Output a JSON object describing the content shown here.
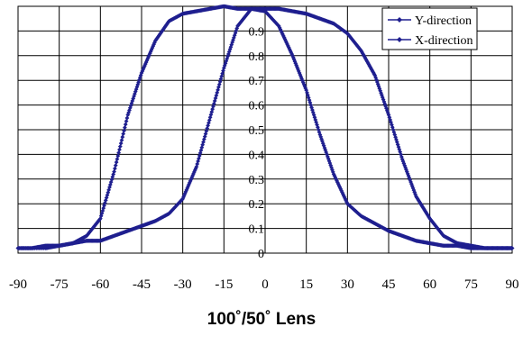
{
  "chart_data": {
    "type": "line",
    "title": "100˚/50˚ Lens",
    "xlabel": "",
    "ylabel": "",
    "xlim": [
      -90,
      90
    ],
    "ylim": [
      0,
      1
    ],
    "x_ticks": [
      -90,
      -75,
      -60,
      -45,
      -30,
      -15,
      0,
      15,
      30,
      45,
      60,
      75,
      90
    ],
    "y_ticks": [
      0,
      0.1,
      0.2,
      0.3,
      0.4,
      0.5,
      0.6,
      0.7,
      0.8,
      0.9
    ],
    "y_tick_labels": [
      "0",
      "0.1",
      "0.2",
      "0.3",
      "0.4",
      "0.5",
      "0.6",
      "0.7",
      "0.8",
      "0.9"
    ],
    "grid": true,
    "legend_position": "top-right",
    "series": [
      {
        "name": "Y-direction",
        "color": "#1f1f8f",
        "x": [
          -90,
          -80,
          -75,
          -70,
          -65,
          -60,
          -55,
          -50,
          -45,
          -40,
          -35,
          -30,
          -25,
          -20,
          -15,
          -10,
          -5,
          0,
          5,
          10,
          15,
          20,
          25,
          30,
          35,
          40,
          45,
          50,
          55,
          60,
          65,
          70,
          75,
          80,
          85,
          90
        ],
        "y": [
          0.02,
          0.02,
          0.03,
          0.04,
          0.05,
          0.05,
          0.07,
          0.09,
          0.11,
          0.13,
          0.16,
          0.22,
          0.35,
          0.55,
          0.75,
          0.92,
          0.99,
          0.98,
          0.92,
          0.8,
          0.66,
          0.48,
          0.32,
          0.2,
          0.15,
          0.12,
          0.09,
          0.07,
          0.05,
          0.04,
          0.03,
          0.03,
          0.02,
          0.02,
          0.02,
          0.02
        ]
      },
      {
        "name": "X-direction",
        "color": "#1f1f8f",
        "x": [
          -90,
          -85,
          -80,
          -75,
          -70,
          -65,
          -60,
          -55,
          -50,
          -45,
          -40,
          -35,
          -30,
          -25,
          -20,
          -15,
          -10,
          -5,
          0,
          5,
          10,
          15,
          20,
          25,
          30,
          35,
          40,
          45,
          50,
          55,
          60,
          65,
          70,
          75,
          80,
          85,
          90
        ],
        "y": [
          0.02,
          0.02,
          0.03,
          0.03,
          0.04,
          0.07,
          0.14,
          0.33,
          0.56,
          0.73,
          0.86,
          0.94,
          0.97,
          0.98,
          0.99,
          1.0,
          0.99,
          0.99,
          0.99,
          0.99,
          0.98,
          0.97,
          0.95,
          0.93,
          0.89,
          0.82,
          0.72,
          0.56,
          0.38,
          0.23,
          0.14,
          0.07,
          0.04,
          0.03,
          0.02,
          0.02,
          0.02
        ]
      }
    ]
  }
}
